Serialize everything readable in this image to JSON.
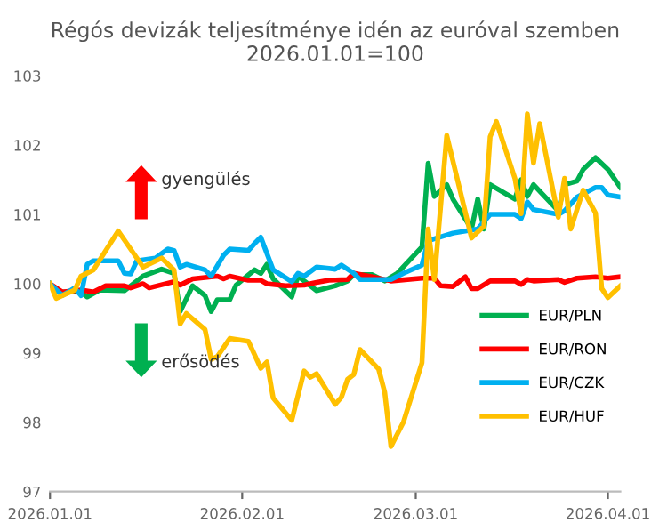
{
  "chart_data": {
    "type": "line",
    "title": "Régós devizák teljesítménye idén az euróval szemben\n2026.01.01=100",
    "xlim": [
      "2026-01-01",
      "2026-04-03"
    ],
    "xticks": [
      {
        "value": "2026-01-01",
        "label": "2026.01.01"
      },
      {
        "value": "2026-02-01",
        "label": "2026.02.01"
      },
      {
        "value": "2026-03-01",
        "label": "2026.03.01"
      },
      {
        "value": "2026-04-01",
        "label": "2026.04.01"
      }
    ],
    "ylim": [
      97,
      103
    ],
    "yticks": [
      97,
      98,
      99,
      100,
      101,
      102,
      103
    ],
    "grid": false,
    "legend": "right",
    "marker": "none",
    "line_style": "solid",
    "annotations": [
      "gyengülés",
      "erősödés"
    ],
    "series": [
      {
        "name": "EUR/PLN",
        "color": "#00b050",
        "x": [
          "2026-01-01",
          "2026-01-02",
          "2026-01-06",
          "2026-01-07",
          "2026-01-09",
          "2026-01-13",
          "2026-01-14",
          "2026-01-16",
          "2026-01-19",
          "2026-01-21",
          "2026-01-22",
          "2026-01-24",
          "2026-01-26",
          "2026-01-27",
          "2026-01-28",
          "2026-01-30",
          "2026-01-31",
          "2026-02-03",
          "2026-02-04",
          "2026-02-05",
          "2026-02-06",
          "2026-02-09",
          "2026-02-10",
          "2026-02-13",
          "2026-02-16",
          "2026-02-18",
          "2026-02-19",
          "2026-02-22",
          "2026-02-24",
          "2026-02-26",
          "2026-03-02",
          "2026-03-03",
          "2026-03-04",
          "2026-03-06",
          "2026-03-07",
          "2026-03-10",
          "2026-03-11",
          "2026-03-12",
          "2026-03-13",
          "2026-03-17",
          "2026-03-18",
          "2026-03-19",
          "2026-03-20",
          "2026-03-24",
          "2026-03-25",
          "2026-03-27",
          "2026-03-28",
          "2026-03-30",
          "2026-04-01",
          "2026-04-03"
        ],
        "values": [
          100.0,
          99.88,
          99.88,
          99.81,
          99.91,
          99.9,
          99.97,
          100.11,
          100.21,
          100.15,
          99.6,
          99.97,
          99.83,
          99.6,
          99.77,
          99.77,
          99.98,
          100.2,
          100.15,
          100.28,
          100.07,
          99.81,
          100.11,
          99.9,
          99.97,
          100.04,
          100.13,
          100.13,
          100.04,
          100.15,
          100.53,
          101.74,
          101.26,
          101.43,
          101.22,
          100.79,
          101.22,
          100.79,
          101.43,
          101.22,
          101.5,
          101.26,
          101.43,
          101.05,
          101.43,
          101.48,
          101.65,
          101.82,
          101.65,
          101.39
        ]
      },
      {
        "name": "EUR/RON",
        "color": "#ff0000",
        "x": [
          "2026-01-01",
          "2026-01-03",
          "2026-01-06",
          "2026-01-08",
          "2026-01-10",
          "2026-01-13",
          "2026-01-14",
          "2026-01-16",
          "2026-01-17",
          "2026-01-21",
          "2026-01-22",
          "2026-01-24",
          "2026-01-28",
          "2026-01-29",
          "2026-01-30",
          "2026-02-02",
          "2026-02-04",
          "2026-02-05",
          "2026-02-08",
          "2026-02-11",
          "2026-02-13",
          "2026-02-15",
          "2026-02-18",
          "2026-02-19",
          "2026-02-22",
          "2026-02-25",
          "2026-03-02",
          "2026-03-04",
          "2026-03-05",
          "2026-03-07",
          "2026-03-09",
          "2026-03-10",
          "2026-03-11",
          "2026-03-13",
          "2026-03-17",
          "2026-03-18",
          "2026-03-19",
          "2026-03-20",
          "2026-03-24",
          "2026-03-25",
          "2026-03-27",
          "2026-03-30",
          "2026-04-01",
          "2026-04-03"
        ],
        "values": [
          100.0,
          99.88,
          99.91,
          99.88,
          99.97,
          99.97,
          99.94,
          100.0,
          99.94,
          100.03,
          99.98,
          100.07,
          100.11,
          100.07,
          100.11,
          100.05,
          100.05,
          100.0,
          99.97,
          99.98,
          100.02,
          100.05,
          100.06,
          100.15,
          100.1,
          100.04,
          100.08,
          100.08,
          99.97,
          99.96,
          100.1,
          99.93,
          99.93,
          100.04,
          100.04,
          99.99,
          100.06,
          100.04,
          100.06,
          100.02,
          100.08,
          100.1,
          100.08,
          100.1
        ]
      },
      {
        "name": "EUR/CZK",
        "color": "#00b0f0",
        "x": [
          "2026-01-01",
          "2026-01-03",
          "2026-01-05",
          "2026-01-06",
          "2026-01-07",
          "2026-01-08",
          "2026-01-12",
          "2026-01-13",
          "2026-01-14",
          "2026-01-15",
          "2026-01-18",
          "2026-01-20",
          "2026-01-21",
          "2026-01-22",
          "2026-01-23",
          "2026-01-26",
          "2026-01-27",
          "2026-01-29",
          "2026-01-30",
          "2026-02-02",
          "2026-02-03",
          "2026-02-04",
          "2026-02-06",
          "2026-02-09",
          "2026-02-10",
          "2026-02-11",
          "2026-02-13",
          "2026-02-15",
          "2026-02-16",
          "2026-02-17",
          "2026-02-19",
          "2026-02-20",
          "2026-02-25",
          "2026-02-27",
          "2026-03-02",
          "2026-03-03",
          "2026-03-07",
          "2026-03-11",
          "2026-03-13",
          "2026-03-17",
          "2026-03-18",
          "2026-03-19",
          "2026-03-20",
          "2026-03-24",
          "2026-03-25",
          "2026-03-27",
          "2026-03-30",
          "2026-03-31",
          "2026-04-01",
          "2026-04-03"
        ],
        "values": [
          100.0,
          99.83,
          99.94,
          99.83,
          100.28,
          100.33,
          100.33,
          100.15,
          100.14,
          100.33,
          100.37,
          100.5,
          100.48,
          100.24,
          100.28,
          100.2,
          100.11,
          100.41,
          100.5,
          100.48,
          100.58,
          100.67,
          100.2,
          100.03,
          100.15,
          100.11,
          100.24,
          100.22,
          100.21,
          100.27,
          100.15,
          100.06,
          100.06,
          100.15,
          100.27,
          100.62,
          100.73,
          100.79,
          101.0,
          101.0,
          100.94,
          101.18,
          101.07,
          101.0,
          101.05,
          101.25,
          101.39,
          101.39,
          101.28,
          101.25
        ]
      },
      {
        "name": "EUR/HUF",
        "color": "#ffc000",
        "x": [
          "2026-01-01",
          "2026-01-02",
          "2026-01-05",
          "2026-01-06",
          "2026-01-08",
          "2026-01-12",
          "2026-01-14",
          "2026-01-16",
          "2026-01-19",
          "2026-01-21",
          "2026-01-22",
          "2026-01-23",
          "2026-01-26",
          "2026-01-27",
          "2026-01-28",
          "2026-01-30",
          "2026-02-02",
          "2026-02-04",
          "2026-02-05",
          "2026-02-06",
          "2026-02-09",
          "2026-02-11",
          "2026-02-12",
          "2026-02-13",
          "2026-02-16",
          "2026-02-17",
          "2026-02-18",
          "2026-02-19",
          "2026-02-20",
          "2026-02-23",
          "2026-02-24",
          "2026-02-25",
          "2026-02-27",
          "2026-03-02",
          "2026-03-03",
          "2026-03-04",
          "2026-03-06",
          "2026-03-10",
          "2026-03-12",
          "2026-03-13",
          "2026-03-14",
          "2026-03-17",
          "2026-03-18",
          "2026-03-19",
          "2026-03-20",
          "2026-03-21",
          "2026-03-24",
          "2026-03-25",
          "2026-03-26",
          "2026-03-28",
          "2026-03-30",
          "2026-03-31",
          "2026-04-01",
          "2026-04-03"
        ],
        "values": [
          100.0,
          99.79,
          99.91,
          100.11,
          100.2,
          100.76,
          100.5,
          100.24,
          100.37,
          100.2,
          99.42,
          99.57,
          99.34,
          98.91,
          98.95,
          99.21,
          99.17,
          98.78,
          98.87,
          98.35,
          98.03,
          98.74,
          98.65,
          98.7,
          98.26,
          98.36,
          98.62,
          98.69,
          99.05,
          98.77,
          98.43,
          97.65,
          98.0,
          98.86,
          100.79,
          100.06,
          102.14,
          100.66,
          100.83,
          102.12,
          102.34,
          101.52,
          101.01,
          102.45,
          101.74,
          102.31,
          100.96,
          101.52,
          100.79,
          101.35,
          101.02,
          99.93,
          99.8,
          99.97
        ]
      }
    ]
  }
}
